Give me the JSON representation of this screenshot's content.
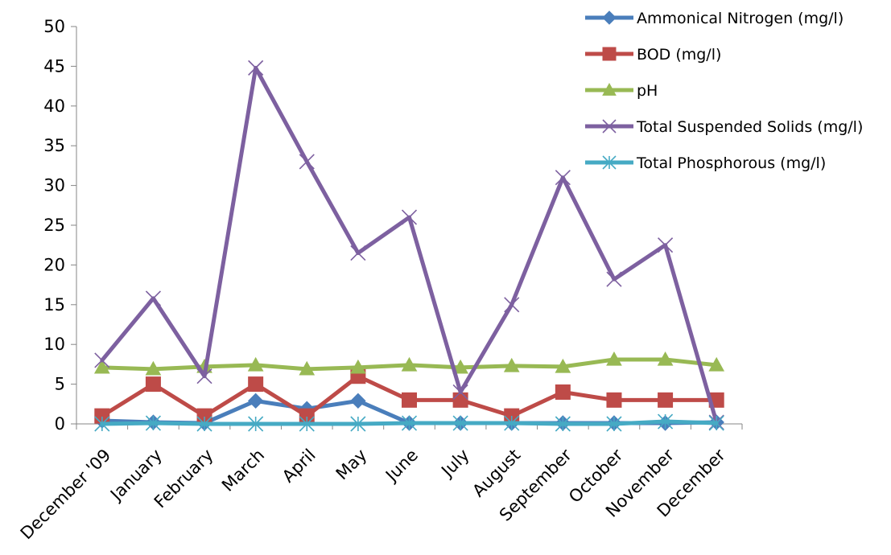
{
  "chart_data": {
    "type": "line",
    "categories": [
      "December '09",
      "January",
      "February",
      "March",
      "April",
      "May",
      "June",
      "July",
      "August",
      "September",
      "October",
      "November",
      "December"
    ],
    "ylim": [
      0,
      50
    ],
    "yticks": [
      0,
      5,
      10,
      15,
      20,
      25,
      30,
      35,
      40,
      45,
      50
    ],
    "grid": false,
    "legend_position": "top-right",
    "series": [
      {
        "name": "Ammonical Nitrogen (mg/l)",
        "color": "#4a7ebb",
        "marker": "diamond",
        "values": [
          0.4,
          0.2,
          0.1,
          2.9,
          1.9,
          2.9,
          0.1,
          0.1,
          0.1,
          0.1,
          0.1,
          0.1,
          0.2
        ]
      },
      {
        "name": "BOD (mg/l)",
        "color": "#be4b48",
        "marker": "square",
        "values": [
          1,
          5,
          1,
          5,
          1,
          6,
          3,
          3,
          1,
          4,
          3,
          3,
          3
        ]
      },
      {
        "name": "pH",
        "color": "#98b954",
        "marker": "triangle",
        "values": [
          7.1,
          6.9,
          7.2,
          7.4,
          6.9,
          7.1,
          7.4,
          7.1,
          7.3,
          7.2,
          8.1,
          8.1,
          7.4
        ]
      },
      {
        "name": "Total Suspended Solids (mg/l)",
        "color": "#7d60a0",
        "marker": "x",
        "values": [
          8,
          15.8,
          6,
          44.8,
          33,
          21.5,
          26,
          4,
          15,
          31,
          18.2,
          22.5,
          0.2
        ]
      },
      {
        "name": "Total Phosphorous (mg/l)",
        "color": "#46aac4",
        "marker": "asterisk",
        "values": [
          0,
          0.1,
          0,
          0,
          0,
          0,
          0.1,
          0.1,
          0.1,
          0,
          0,
          0.3,
          0.1
        ]
      }
    ]
  }
}
